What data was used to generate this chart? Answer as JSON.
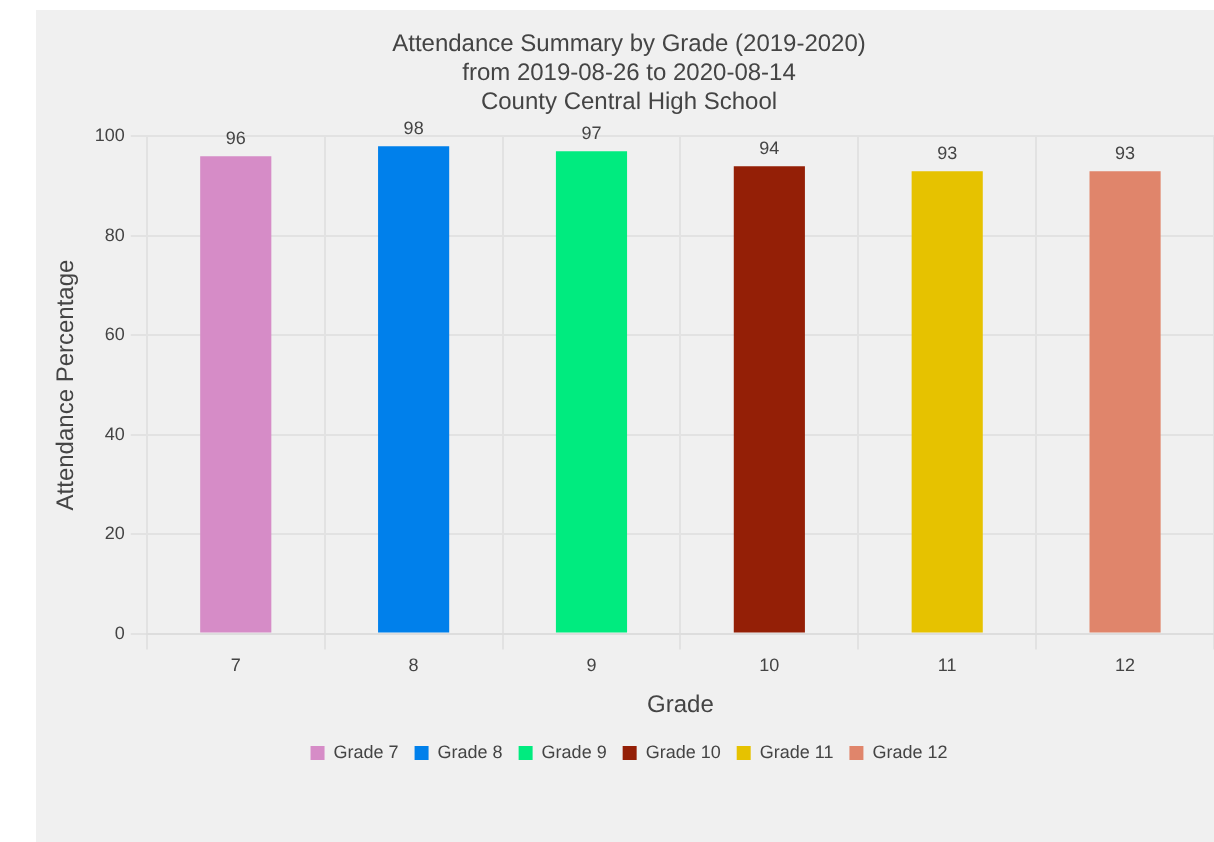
{
  "chart_data": {
    "type": "bar",
    "title": "Attendance Summary by Grade (2019-2020)",
    "subtitle": "from 2019-08-26 to 2020-08-14\nCounty Central High School",
    "xlabel": "Grade",
    "ylabel": "Attendance Percentage",
    "categories": [
      "7",
      "8",
      "9",
      "10",
      "11",
      "12"
    ],
    "series": [
      {
        "name": "Grade 7",
        "color": "#d68cc7",
        "values": [
          96,
          null,
          null,
          null,
          null,
          null
        ]
      },
      {
        "name": "Grade 8",
        "color": "#0080eb",
        "values": [
          null,
          98,
          null,
          null,
          null,
          null
        ]
      },
      {
        "name": "Grade 9",
        "color": "#00eb7f",
        "values": [
          null,
          null,
          97,
          null,
          null,
          null
        ]
      },
      {
        "name": "Grade 10",
        "color": "#941f06",
        "values": [
          null,
          null,
          null,
          94,
          null,
          null
        ]
      },
      {
        "name": "Grade 11",
        "color": "#e6c200",
        "values": [
          null,
          null,
          null,
          null,
          93,
          null
        ]
      },
      {
        "name": "Grade 12",
        "color": "#e0856b",
        "values": [
          null,
          null,
          null,
          null,
          null,
          93
        ]
      }
    ],
    "ylim": [
      0,
      100
    ],
    "yticks": [
      0,
      20,
      40,
      60,
      80,
      100
    ],
    "grid": true,
    "legend": "bottom",
    "data_labels": true
  }
}
